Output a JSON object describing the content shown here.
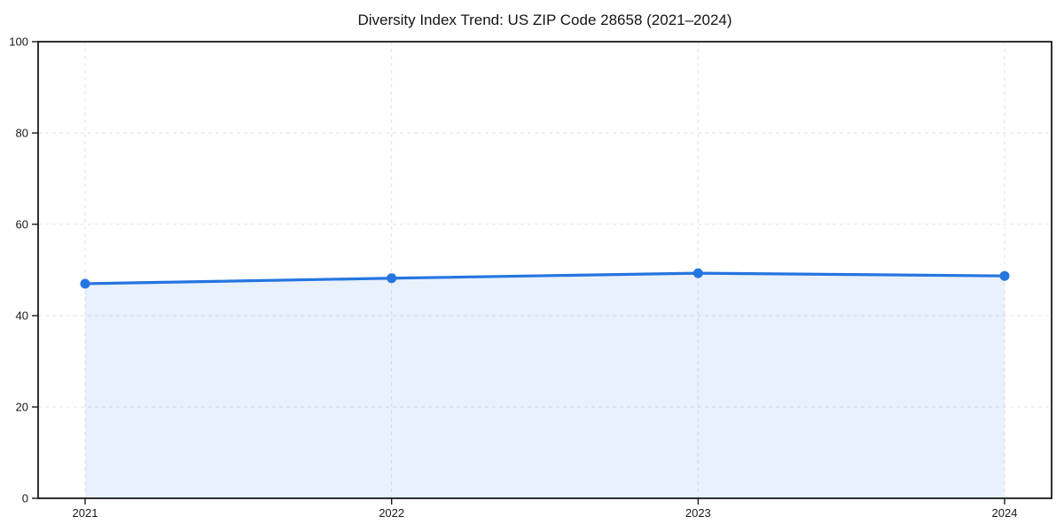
{
  "chart_data": {
    "type": "area",
    "title": "Diversity Index Trend: US ZIP Code 28658 (2021–2024)",
    "series_name": "Diversity Index",
    "categories": [
      "2021",
      "2022",
      "2023",
      "2024"
    ],
    "values": [
      47.0,
      48.2,
      49.3,
      48.7
    ],
    "xlabel": "",
    "ylabel": "",
    "ylim": [
      0,
      100
    ],
    "yticks": [
      0,
      20,
      40,
      60,
      80,
      100
    ],
    "grid": "dashed",
    "legend_position": "none",
    "colors": {
      "line": "#2575e1",
      "marker": "#2575e1",
      "fill": "#2575e1",
      "fill_opacity": 0.1,
      "grid": "#e3e3e3",
      "axis": "#1a1a1a",
      "tick_text": "#191919",
      "background": "#ffffff"
    }
  }
}
